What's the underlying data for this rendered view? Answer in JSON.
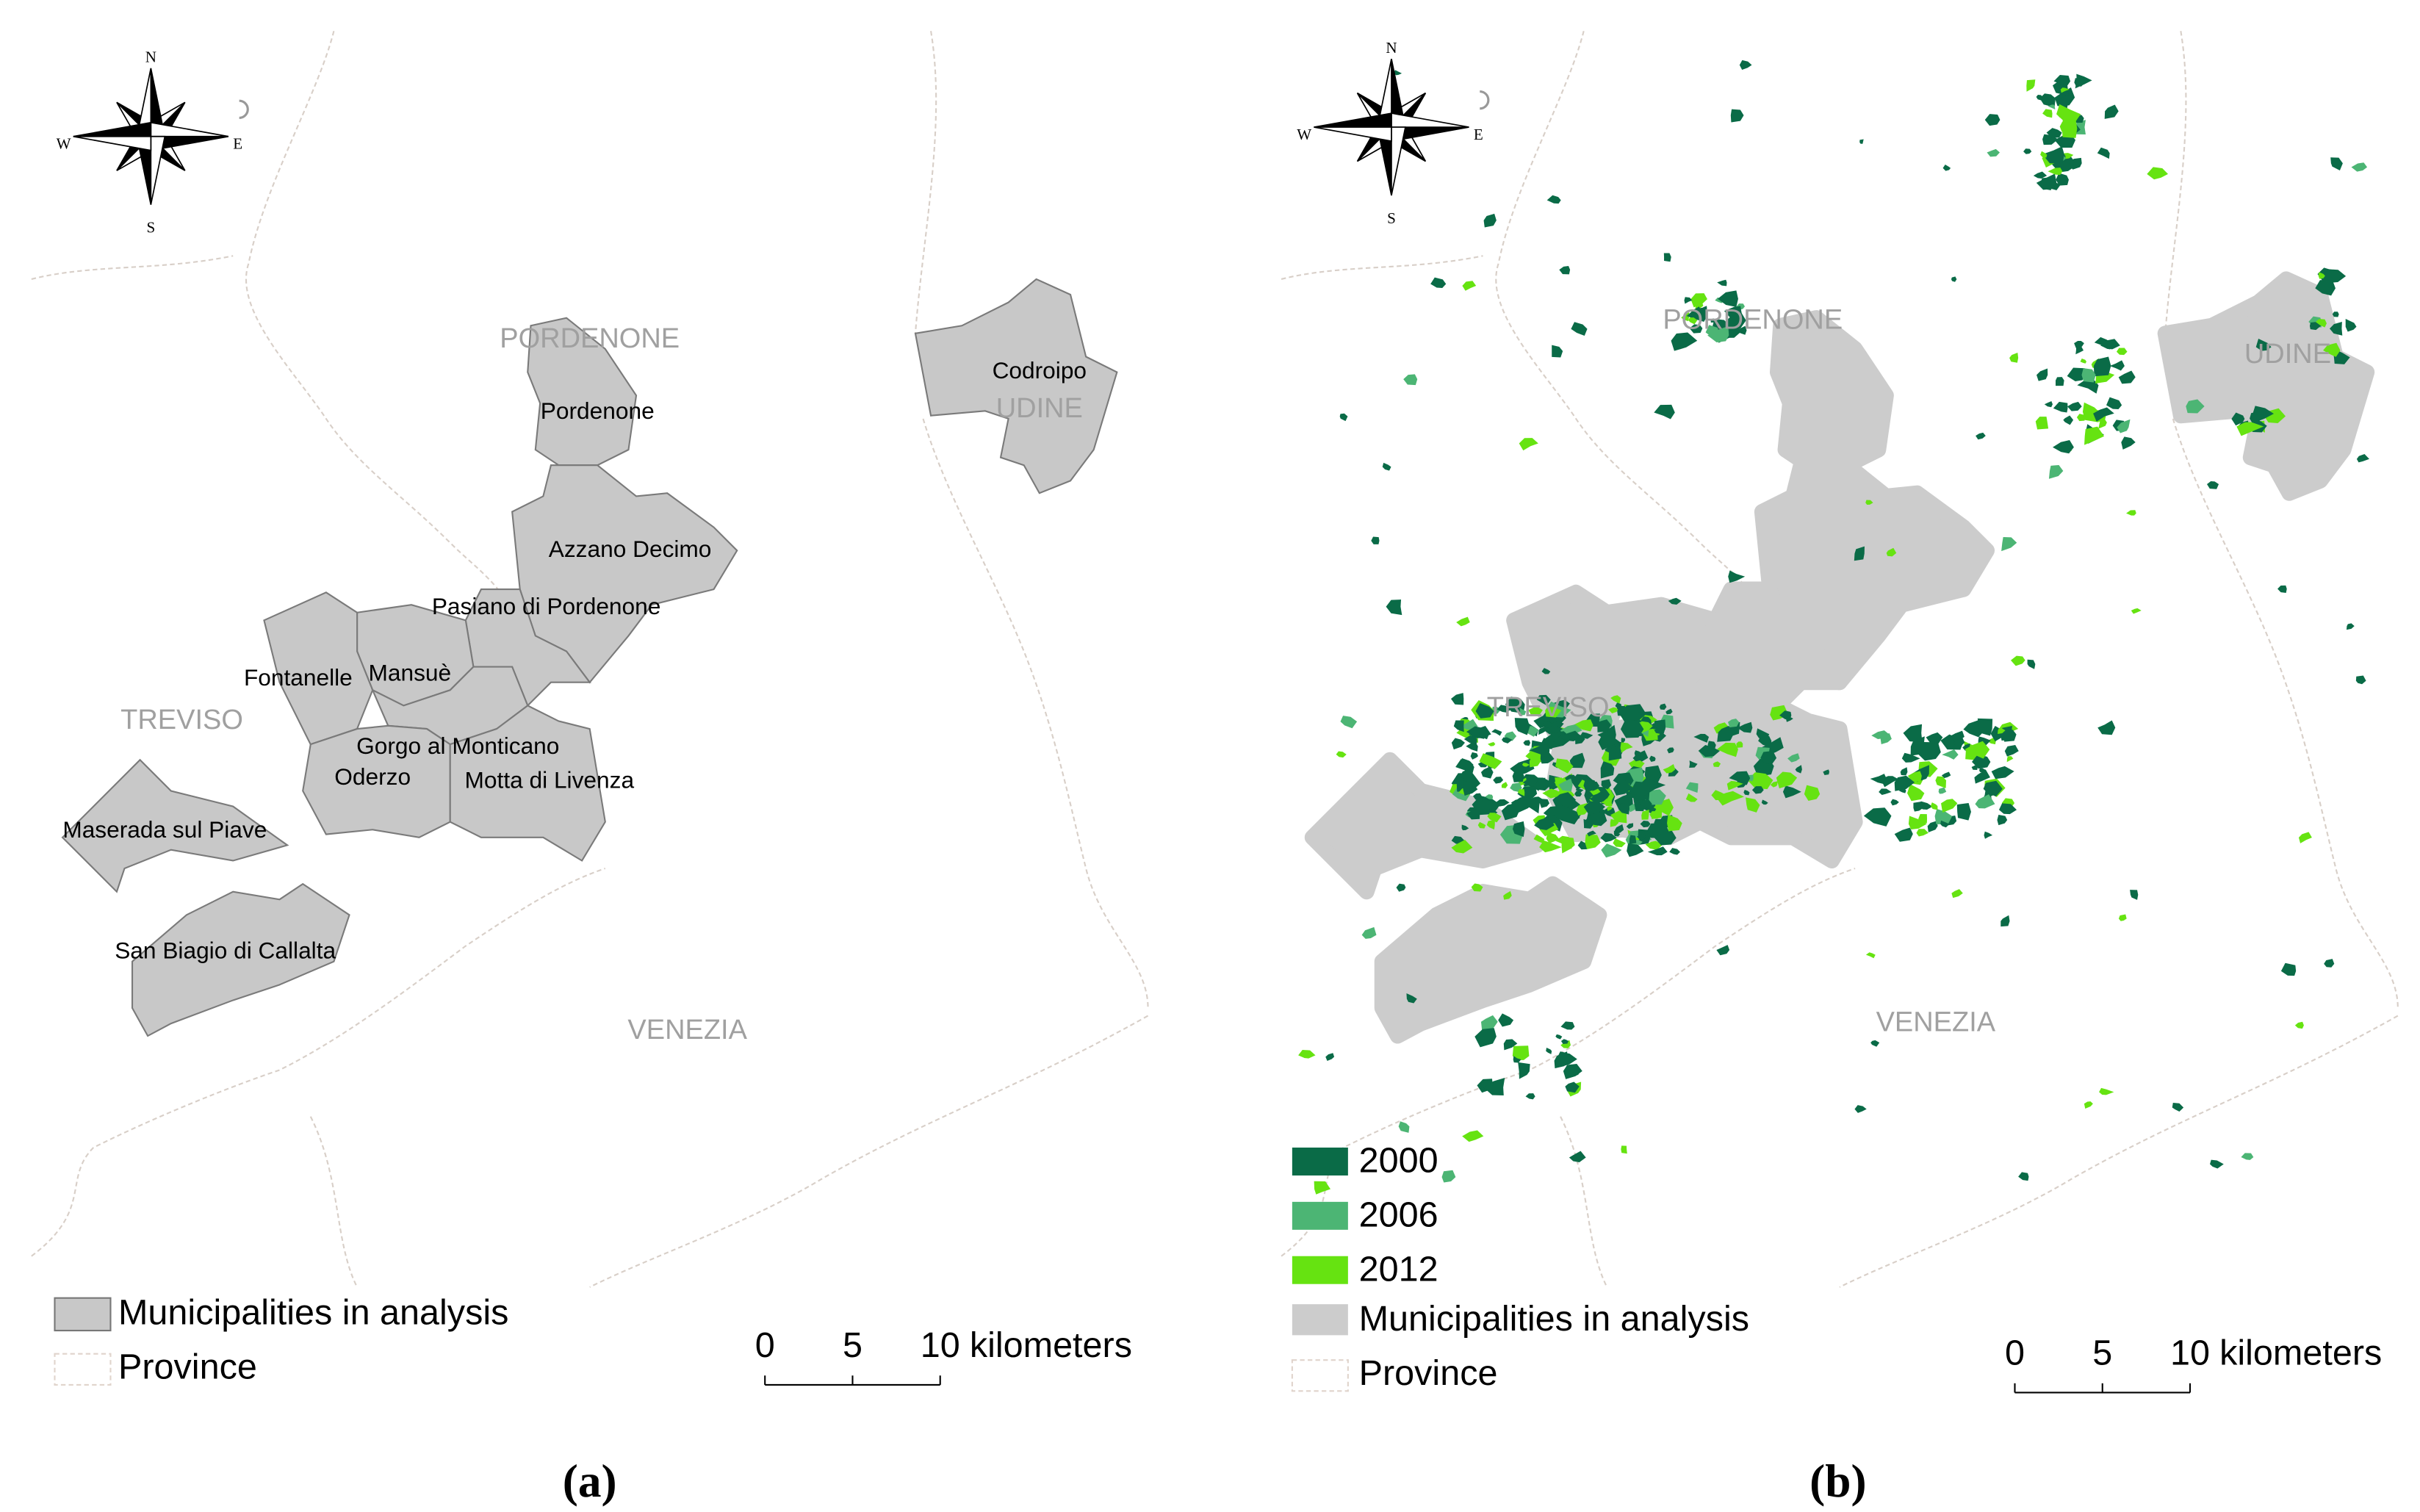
{
  "panel_a": {
    "compass": {
      "n": "N",
      "e": "E",
      "s": "S",
      "w": "W"
    },
    "province_labels": [
      "PORDENONE",
      "UDINE",
      "TREVISO",
      "VENEZIA"
    ],
    "municipality_labels": [
      "Pordenone",
      "Azzano Decimo",
      "Pasiano di Pordenone",
      "Fontanelle",
      "Mansuè",
      "Gorgo al Monticano",
      "Oderzo",
      "Motta di Livenza",
      "Maserada sul Piave",
      "San Biagio di Callalta",
      "Codroipo"
    ],
    "legend": [
      {
        "label": "Municipalities in analysis",
        "color": "#c8c8c8"
      },
      {
        "label": "Province"
      }
    ],
    "scale": {
      "ticks": [
        0,
        5,
        10
      ],
      "unit": "kilometers"
    },
    "caption": "(a)"
  },
  "panel_b": {
    "compass": {
      "n": "N",
      "e": "E",
      "s": "S",
      "w": "W"
    },
    "province_labels": [
      "PORDENONE",
      "UDINE",
      "TREVISO",
      "VENEZIA"
    ],
    "legend": [
      {
        "label": "2000",
        "color": "#0a6b47"
      },
      {
        "label": "2006",
        "color": "#4cb574"
      },
      {
        "label": "2012",
        "color": "#66e311"
      },
      {
        "label": "Municipalities in analysis",
        "color": "#cccccc"
      },
      {
        "label": "Province"
      }
    ],
    "scale": {
      "ticks": [
        0,
        5,
        10
      ],
      "unit": "kilometers"
    },
    "caption": "(b)"
  }
}
